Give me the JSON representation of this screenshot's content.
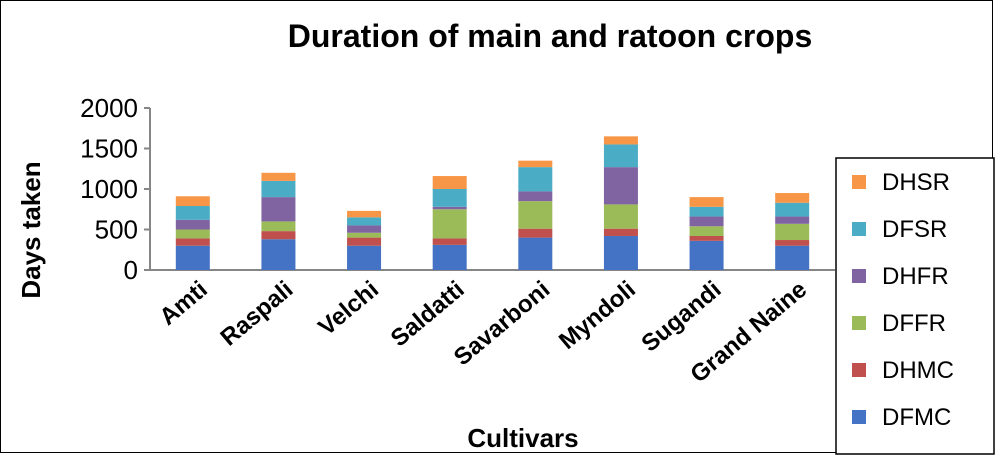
{
  "chart_data": {
    "type": "bar",
    "stacked": true,
    "title": "Duration of main and ratoon crops",
    "xlabel": "Cultivars",
    "ylabel": "Days taken",
    "ylim": [
      0,
      2000
    ],
    "yticks": [
      "0",
      "500",
      "1000",
      "1500",
      "2000"
    ],
    "ytick_values": [
      0,
      500,
      1000,
      1500,
      2000
    ],
    "grid": false,
    "legend_position": "right",
    "categories": [
      "Amti",
      "Raspali",
      "Velchi",
      "Saldatti",
      "Savarboni",
      "Myndoli",
      "Sugandi",
      "Grand Naine"
    ],
    "series": [
      {
        "name": "DFMC",
        "color": "#4472C4",
        "values": [
          300,
          380,
          300,
          310,
          400,
          420,
          360,
          300
        ]
      },
      {
        "name": "DHMC",
        "color": "#C0504D",
        "values": [
          90,
          100,
          100,
          80,
          110,
          90,
          60,
          70
        ]
      },
      {
        "name": "DFFR",
        "color": "#9BBB59",
        "values": [
          110,
          120,
          60,
          360,
          340,
          300,
          120,
          200
        ]
      },
      {
        "name": "DHFR",
        "color": "#8064A2",
        "values": [
          120,
          300,
          90,
          30,
          120,
          460,
          120,
          90
        ]
      },
      {
        "name": "DFSR",
        "color": "#4BACC6",
        "values": [
          170,
          200,
          100,
          220,
          300,
          280,
          120,
          170
        ]
      },
      {
        "name": "DHSR",
        "color": "#F79646",
        "values": [
          120,
          100,
          80,
          160,
          80,
          100,
          120,
          120
        ]
      }
    ]
  }
}
